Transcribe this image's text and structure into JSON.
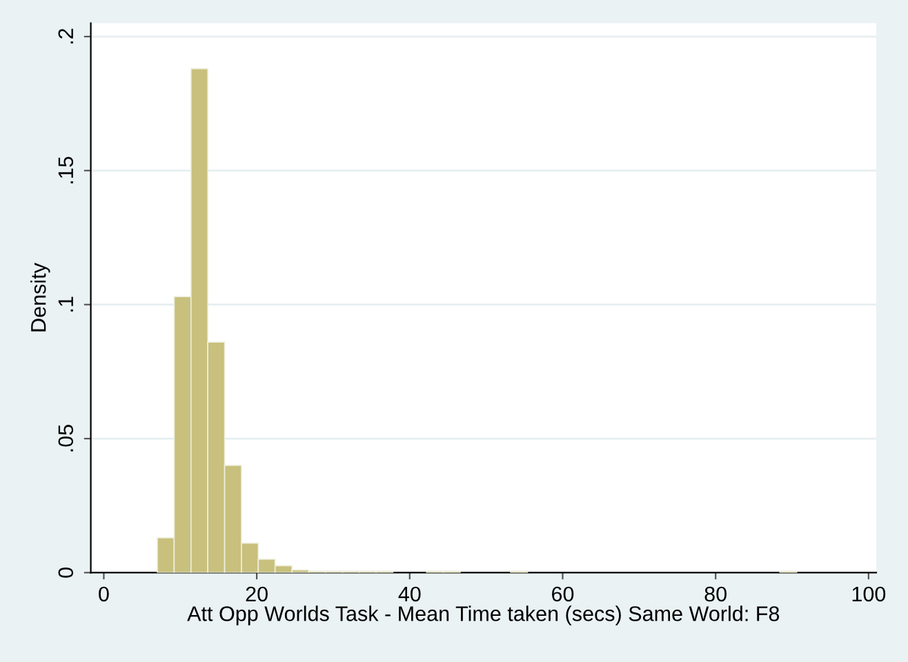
{
  "chart_data": {
    "type": "histogram",
    "xlabel": "Att Opp Worlds Task - Mean Time taken (secs) Same World: F8",
    "ylabel": "Density",
    "bins": [
      7,
      9.2,
      11.4,
      13.6,
      15.8,
      18,
      20.2,
      22.4,
      24.6,
      26.8,
      29,
      31.2,
      33.4,
      35.6,
      37.8,
      40,
      42.2,
      44.4,
      46.6,
      48.8,
      51,
      53.2,
      55.4,
      57.6,
      59.8,
      62,
      64.2,
      66.4,
      68.6,
      70.8,
      73,
      75.2,
      77.4,
      79.6,
      81.8,
      84,
      86.2,
      88.4,
      90.6
    ],
    "values": [
      0.013,
      0.103,
      0.188,
      0.086,
      0.04,
      0.011,
      0.005,
      0.0026,
      0.001,
      0.0005,
      0.0005,
      0.0005,
      0.0005,
      0.0005,
      0,
      0,
      0.0005,
      0.0005,
      0,
      0,
      0,
      0.0005,
      0,
      0,
      0,
      0,
      0,
      0,
      0,
      0,
      0,
      0,
      0,
      0,
      0,
      0,
      0,
      0.0005
    ],
    "color": "#c8c07c",
    "xlim": [
      -1.7,
      101
    ],
    "ylim": [
      0,
      0.205
    ],
    "xticks": [
      0,
      20,
      40,
      60,
      80,
      100
    ],
    "yticks": [
      {
        "value": 0,
        "label": "0"
      },
      {
        "value": 0.05,
        "label": ".05"
      },
      {
        "value": 0.1,
        "label": ".1"
      },
      {
        "value": 0.15,
        "label": ".15"
      },
      {
        "value": 0.2,
        "label": ".2"
      }
    ],
    "grid": "y"
  }
}
